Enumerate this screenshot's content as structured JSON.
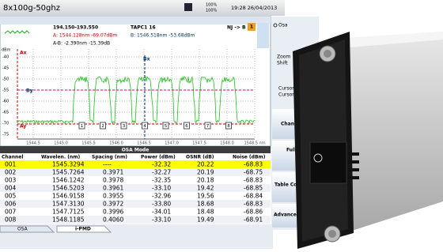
{
  "header": {
    "title": "8x100g-50ghz",
    "battery": [
      "100%",
      "100%"
    ],
    "datetime": "19:28 26/04/2013"
  },
  "trace_info": {
    "range": "194.150-193.550",
    "tap": "TAPC1 16",
    "route": "NJ -> B",
    "page": "1",
    "cursor_a": "A: 1544.128nm -69.07dBm",
    "cursor_b": "B: 1546.518nm -53.68dBm",
    "delta": "A-B: -2.390nm -15.39dB"
  },
  "plot": {
    "y_unit": "dBm",
    "yticks": [
      -40,
      -45,
      -50,
      -55,
      -60,
      -65,
      -70,
      -75
    ],
    "markers": {
      "ax": "Ax",
      "ay": "Ay",
      "bx": "Bx",
      "by": "By"
    },
    "channel_markers": [
      "1",
      "2",
      "3",
      "4",
      "5",
      "6",
      "7",
      "8"
    ],
    "xticks": [
      "1544.5",
      "1545.0",
      "1545.5",
      "1546.0",
      "1546.5",
      "1547.0",
      "1547.5",
      "1548.0",
      "1548.5 nm"
    ]
  },
  "table": {
    "title": "OSA Mode",
    "columns": [
      "Channel",
      "Wavelen. (nm)",
      "Spacing (nm)",
      "Power (dBm)",
      "OSNR (dB)",
      "Noise (dBm)"
    ],
    "rows": [
      [
        "001",
        "1545.3294",
        "----",
        "-32.32",
        "20.22",
        "-68.83"
      ],
      [
        "002",
        "1545.7264",
        "0.3971",
        "-32.27",
        "20.19",
        "-68.75"
      ],
      [
        "003",
        "1546.1242",
        "0.3978",
        "-32.35",
        "20.18",
        "-68.83"
      ],
      [
        "004",
        "1546.5203",
        "0.3961",
        "-33.10",
        "19.42",
        "-68.85"
      ],
      [
        "005",
        "1546.9158",
        "0.3955",
        "-32.96",
        "19.56",
        "-68.84"
      ],
      [
        "006",
        "1547.3130",
        "0.3972",
        "-33.80",
        "18.68",
        "-68.83"
      ],
      [
        "007",
        "1547.7125",
        "0.3996",
        "-34.01",
        "18.48",
        "-68.86"
      ],
      [
        "008",
        "1548.1185",
        "0.4060",
        "-33.10",
        "19.49",
        "-68.91"
      ]
    ]
  },
  "tabs": [
    "OSA",
    "i-PMD"
  ],
  "menu": {
    "mode": "Osa",
    "zoom": "Zoom",
    "shift": "Shift",
    "cursor_a": "Cursor A",
    "cursor_b": "Cursor B",
    "buttons": [
      "Channel",
      "Full",
      "Table Content",
      "Advanced"
    ]
  }
}
